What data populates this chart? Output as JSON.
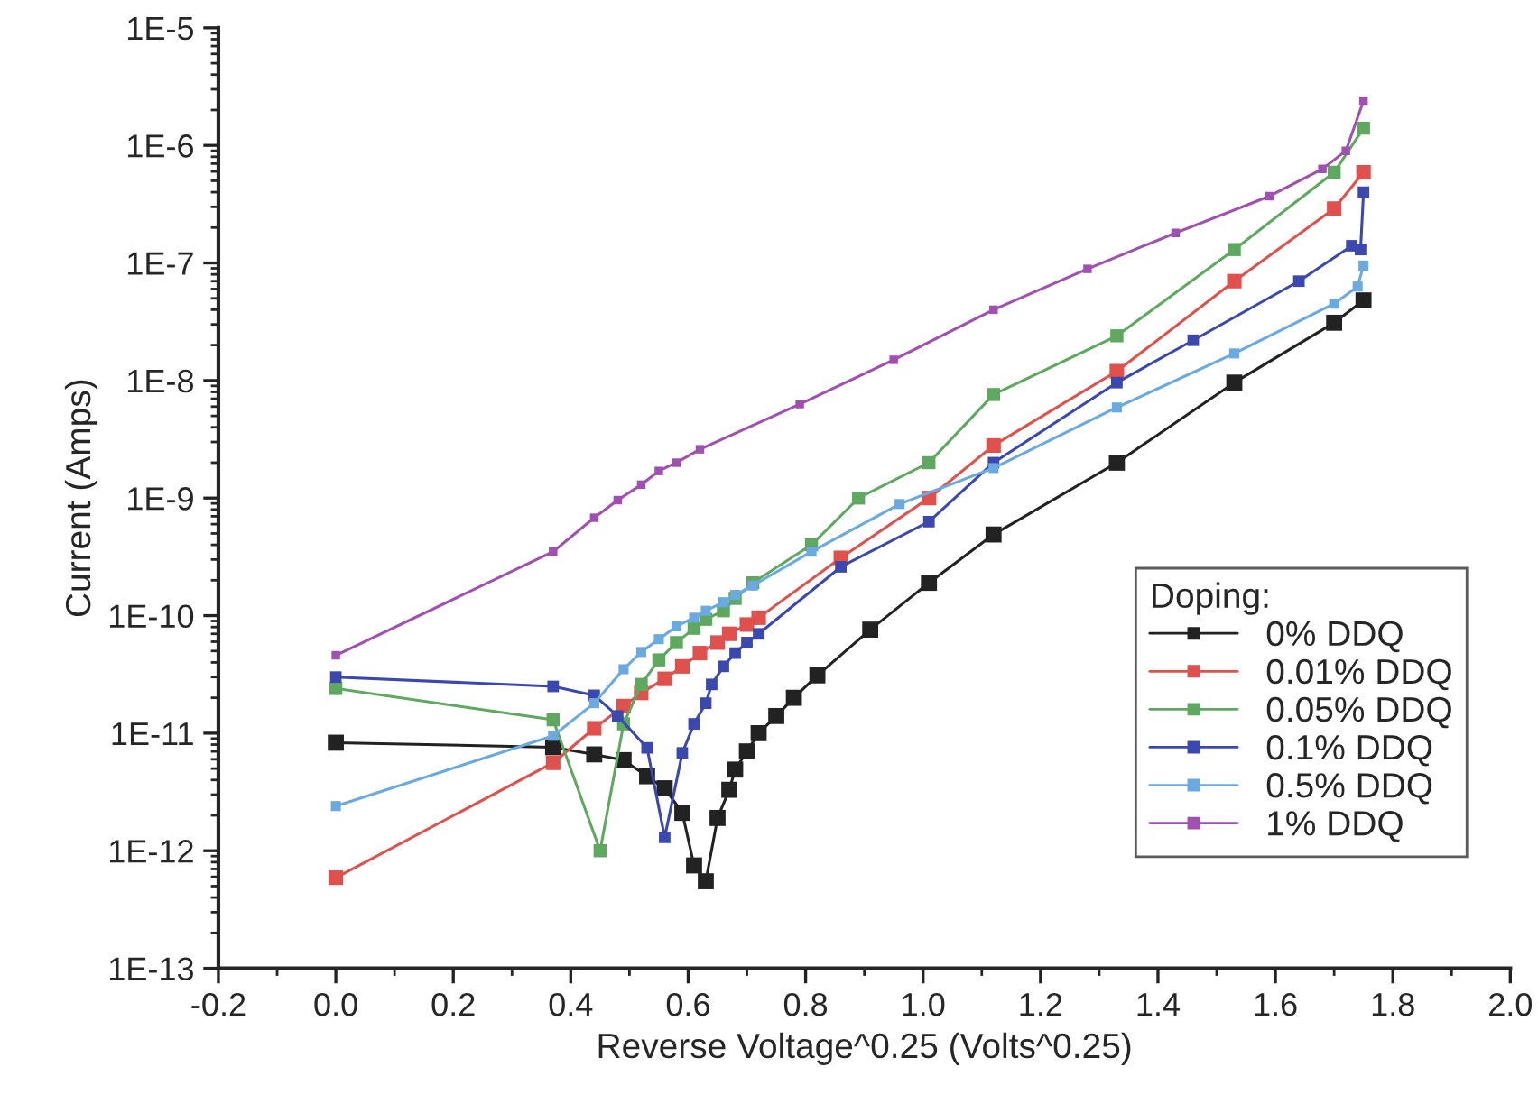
{
  "chart_data": {
    "type": "line",
    "xlabel": "Reverse Voltage^0.25 (Volts^0.25)",
    "ylabel": "Current (Amps)",
    "legend_title": "Doping:",
    "legend": "bottom right",
    "marker": "square",
    "line_style": "solid",
    "log": "y",
    "grid": false,
    "xlim": [
      -0.2,
      2.0
    ],
    "xticks": [
      -0.2,
      {
        "value": 0,
        "label": "0.0"
      },
      0.2,
      0.4,
      0.6,
      0.8,
      {
        "value": 1,
        "label": "1.0"
      },
      1.2,
      1.4,
      1.6,
      1.8,
      {
        "value": 2,
        "label": "2.0"
      }
    ],
    "ylim": [
      1e-13,
      1e-05
    ],
    "yticks": [
      {
        "value": 1e-13,
        "label": "1E-13"
      },
      {
        "value": 1e-12,
        "label": "1E-12"
      },
      {
        "value": 1e-11,
        "label": "1E-11"
      },
      {
        "value": 1e-10,
        "label": "1E-10"
      },
      {
        "value": 1e-09,
        "label": "1E-9"
      },
      {
        "value": 1e-08,
        "label": "1E-8"
      },
      {
        "value": 1e-07,
        "label": "1E-7"
      },
      {
        "value": 1e-06,
        "label": "1E-6"
      },
      {
        "value": 1e-05,
        "label": "1E-5"
      }
    ],
    "series": [
      {
        "name": "0% DDQ",
        "color": "#222222",
        "x": [
          0,
          0.37,
          0.44,
          0.49,
          0.53,
          0.56,
          0.59,
          0.61,
          0.63,
          0.65,
          0.67,
          0.68,
          0.7,
          0.72,
          0.75,
          0.78,
          0.82,
          0.91,
          1.01,
          1.12,
          1.33,
          1.53,
          1.7,
          1.75
        ],
        "values": [
          8.3e-12,
          7.6e-12,
          6.6e-12,
          5.9e-12,
          4.3e-12,
          3.4e-12,
          2.1e-12,
          7.5e-13,
          5.5e-13,
          1.9e-12,
          3.3e-12,
          4.9e-12,
          7e-12,
          1e-11,
          1.4e-11,
          2e-11,
          3.1e-11,
          7.6e-11,
          1.9e-10,
          4.9e-10,
          2e-09,
          9.6e-09,
          3.1e-08,
          4.8e-08
        ]
      },
      {
        "name": "0.01% DDQ",
        "color": "#e0504c",
        "x": [
          0,
          0.37,
          0.44,
          0.49,
          0.52,
          0.56,
          0.59,
          0.62,
          0.65,
          0.67,
          0.7,
          0.72,
          0.86,
          1.01,
          1.12,
          1.33,
          1.53,
          1.7,
          1.75
        ],
        "values": [
          5.9e-13,
          5.6e-12,
          1.1e-11,
          1.7e-11,
          2.2e-11,
          2.9e-11,
          3.7e-11,
          4.8e-11,
          5.9e-11,
          7e-11,
          8.4e-11,
          9.6e-11,
          3.1e-10,
          1e-09,
          2.8e-09,
          1.2e-08,
          7e-08,
          2.9e-07,
          5.9e-07
        ]
      },
      {
        "name": "0.05% DDQ",
        "color": "#5fa860",
        "x": [
          0,
          0.37,
          0.45,
          0.49,
          0.52,
          0.55,
          0.58,
          0.61,
          0.63,
          0.66,
          0.68,
          0.71,
          0.81,
          0.89,
          1.01,
          1.12,
          1.33,
          1.53,
          1.7,
          1.75
        ],
        "values": [
          2.4e-11,
          1.3e-11,
          1e-12,
          1.2e-11,
          2.6e-11,
          4.2e-11,
          5.9e-11,
          7.8e-11,
          9.3e-11,
          1.1e-10,
          1.4e-10,
          1.9e-10,
          4e-10,
          1e-09,
          2e-09,
          7.6e-09,
          2.4e-08,
          1.3e-07,
          5.9e-07,
          1.4e-06
        ]
      },
      {
        "name": "0.1% DDQ",
        "color": "#3a48b0",
        "x": [
          0,
          0.37,
          0.44,
          0.48,
          0.53,
          0.56,
          0.59,
          0.61,
          0.63,
          0.64,
          0.66,
          0.68,
          0.7,
          0.72,
          0.86,
          1.01,
          1.12,
          1.33,
          1.46,
          1.64,
          1.73,
          1.745,
          1.75
        ],
        "values": [
          3e-11,
          2.5e-11,
          2.1e-11,
          1.4e-11,
          7.5e-12,
          1.3e-12,
          6.8e-12,
          1.2e-11,
          1.8e-11,
          2.6e-11,
          3.7e-11,
          4.8e-11,
          5.9e-11,
          7e-11,
          2.6e-10,
          6.3e-10,
          2e-09,
          9.6e-09,
          2.2e-08,
          7e-08,
          1.4e-07,
          1.3e-07,
          4e-07
        ]
      },
      {
        "name": "0.5% DDQ",
        "color": "#6aaae0",
        "x": [
          0,
          0.37,
          0.44,
          0.49,
          0.52,
          0.55,
          0.58,
          0.61,
          0.63,
          0.66,
          0.68,
          0.71,
          0.81,
          0.96,
          1.12,
          1.33,
          1.53,
          1.7,
          1.74,
          1.75
        ],
        "values": [
          2.4e-12,
          9.5e-12,
          1.8e-11,
          3.5e-11,
          4.9e-11,
          6.3e-11,
          8.1e-11,
          9.6e-11,
          1.1e-10,
          1.3e-10,
          1.5e-10,
          1.8e-10,
          3.5e-10,
          8.9e-10,
          1.8e-09,
          5.9e-09,
          1.7e-08,
          4.5e-08,
          6.3e-08,
          9.5e-08
        ]
      },
      {
        "name": "1% DDQ",
        "color": "#a050b0",
        "x": [
          0,
          0.37,
          0.44,
          0.48,
          0.52,
          0.55,
          0.58,
          0.62,
          0.79,
          0.95,
          1.12,
          1.28,
          1.43,
          1.59,
          1.68,
          1.72,
          1.75
        ],
        "values": [
          4.6e-11,
          3.5e-10,
          6.8e-10,
          9.6e-10,
          1.3e-09,
          1.7e-09,
          2e-09,
          2.6e-09,
          6.3e-09,
          1.5e-08,
          4e-08,
          8.9e-08,
          1.8e-07,
          3.7e-07,
          6.3e-07,
          9e-07,
          2.4e-06
        ]
      }
    ]
  }
}
